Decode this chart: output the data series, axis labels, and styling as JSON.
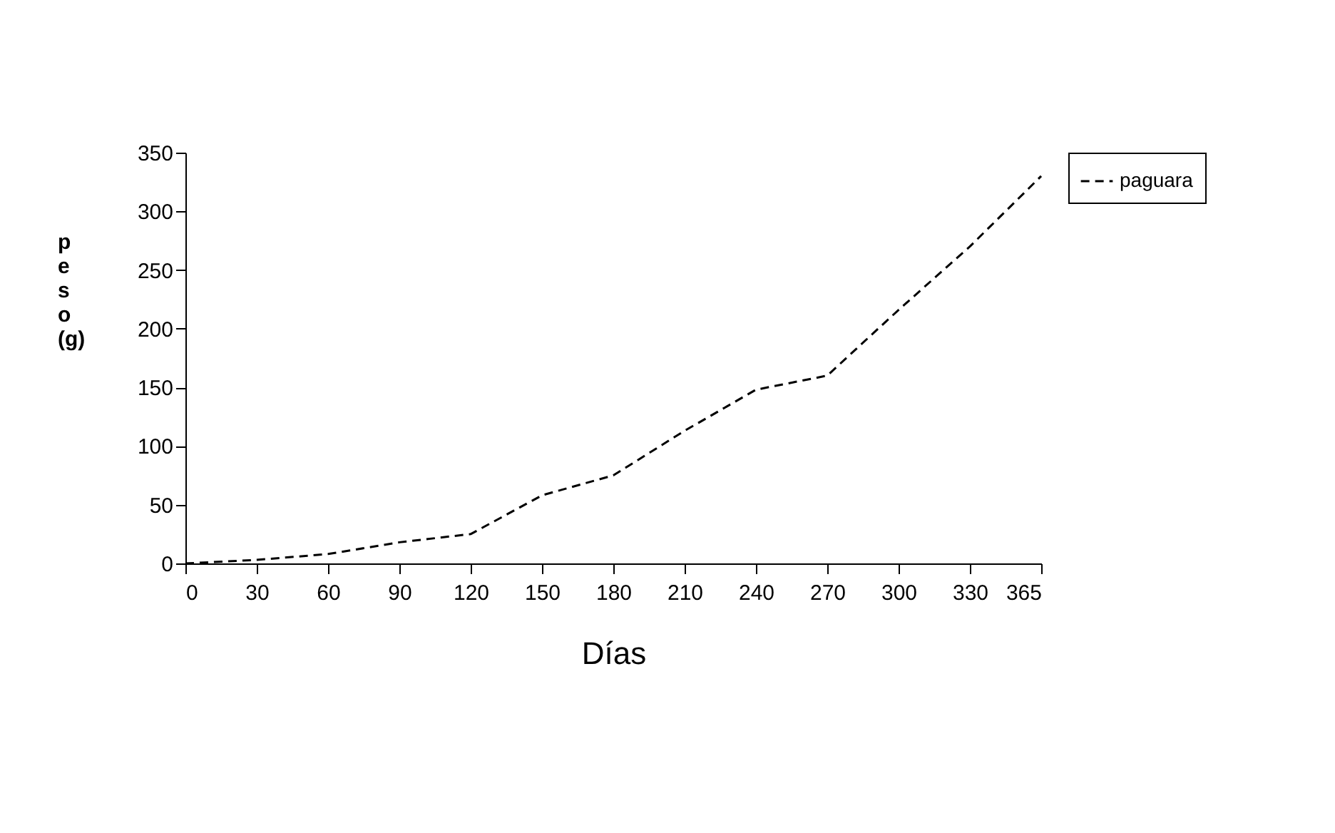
{
  "chart_data": {
    "type": "line",
    "xlabel": "Días",
    "ylabel": "peso (g)",
    "categories": [
      "0",
      "30",
      "60",
      "90",
      "120",
      "150",
      "180",
      "210",
      "240",
      "270",
      "300",
      "330",
      "365"
    ],
    "series": [
      {
        "name": "paguara",
        "color": "#000000",
        "values": [
          0,
          3,
          8,
          18,
          25,
          58,
          75,
          113,
          148,
          160,
          216,
          270,
          330
        ]
      }
    ],
    "ylim": [
      0,
      350
    ],
    "yticks": [
      0,
      50,
      100,
      150,
      200,
      250,
      300,
      350
    ],
    "grid": false,
    "legend": "right",
    "line_style": "dashed",
    "marker": "none"
  }
}
